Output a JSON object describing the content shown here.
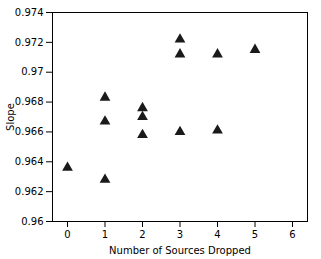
{
  "chart_data": {
    "type": "scatter",
    "x": [
      0,
      1,
      1,
      1,
      2,
      2,
      2,
      3,
      3,
      3,
      4,
      4,
      5
    ],
    "values": [
      0.9636,
      0.9683,
      0.9667,
      0.9628,
      0.9676,
      0.967,
      0.9658,
      0.9722,
      0.9712,
      0.966,
      0.9712,
      0.9661,
      0.9715
    ],
    "xlim": [
      -0.4,
      6.4
    ],
    "ylim": [
      0.96,
      0.974
    ],
    "xticks": [
      0,
      1,
      2,
      3,
      4,
      5,
      6
    ],
    "yticks": [
      0.96,
      0.962,
      0.964,
      0.966,
      0.968,
      0.97,
      0.972,
      0.974
    ],
    "xlabel": "Number of Sources Dropped",
    "ylabel": "Slope",
    "marker": "triangle",
    "color": "#1a1a1a",
    "grid": false
  }
}
